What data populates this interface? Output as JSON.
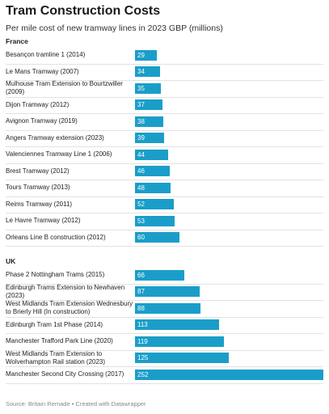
{
  "chart_data": {
    "type": "bar",
    "orientation": "horizontal",
    "title": "Tram Construction Costs",
    "subtitle": "Per mile cost of new tramway lines in 2023 GBP (millions)",
    "xlim": [
      0,
      252
    ],
    "groups": [
      {
        "name": "France",
        "categories": [
          "Besançon tramline 1 (2014)",
          "Le Mans Tramway (2007)",
          "Mulhouse Tram Extension to Bourtzwiller (2009)",
          "Dijon Tramway (2012)",
          "Avignon Tramway (2019)",
          "Angers Tramway extension (2023)",
          "Valenciennes Tramway Line 1 (2006)",
          "Brest Tramway (2012)",
          "Tours Tramway (2013)",
          "Reims Tramway (2011)",
          "Le Havre Tramway (2012)",
          "Orleans Line B construction (2012)"
        ],
        "values": [
          29,
          34,
          35,
          37,
          38,
          39,
          44,
          46,
          48,
          52,
          53,
          60
        ]
      },
      {
        "name": "UK",
        "categories": [
          "Phase 2 Nottingham Trams (2015)",
          "Edinburgh Trams Extension to Newhaven (2023)",
          "West Midlands Tram Extension Wednesbury to Brierly Hill (In construction)",
          "Edinburgh Tram 1st Phase (2014)",
          "Manchester Trafford Park Line (2020)",
          "West Midlands Tram Extension to Wolverhampton Rail station (2023)",
          "Manchester Second City Crossing (2017)"
        ],
        "values": [
          66,
          87,
          88,
          113,
          119,
          125,
          252
        ]
      }
    ],
    "bar_color": "#1a9ec9",
    "grid": false,
    "source": "Source: Britain Remade • Created with Datawrapper"
  }
}
